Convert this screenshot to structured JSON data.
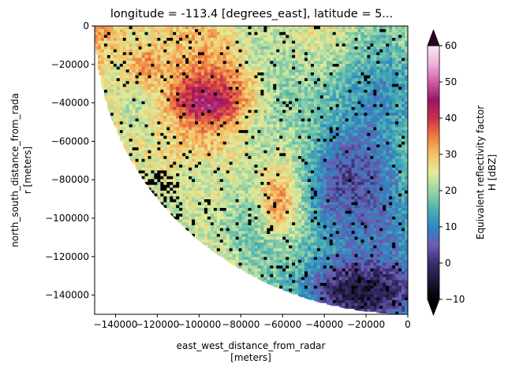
{
  "chart_data": {
    "type": "heatmap",
    "title": "longitude = -113.4 [degrees_east], latitude = 5...",
    "xlabel": "east_west_distance_from_radar",
    "xlabel_units": "[meters]",
    "ylabel": "north_south_distance_from_rada",
    "ylabel_units": "r [meters]",
    "xlim": [
      -150000,
      0
    ],
    "ylim": [
      -150000,
      0
    ],
    "x_ticks": [
      -140000,
      -120000,
      -100000,
      -80000,
      -60000,
      -40000,
      -20000,
      0
    ],
    "x_tick_labels": [
      "−140000",
      "−120000",
      "−100000",
      "−80000",
      "−60000",
      "−40000",
      "−20000",
      "0"
    ],
    "y_ticks": [
      0,
      -20000,
      -40000,
      -60000,
      -80000,
      -100000,
      -120000,
      -140000
    ],
    "y_tick_labels": [
      "0",
      "−20000",
      "−40000",
      "−60000",
      "−80000",
      "−100000",
      "−120000",
      "−140000"
    ],
    "grid": false,
    "data_extent_radius": 150000,
    "colorbar": {
      "label_line1": "Equivalent reflectivity factor",
      "label_line2": "H [dBZ]",
      "range": [
        -10,
        60
      ],
      "ticks": [
        -10,
        0,
        10,
        20,
        30,
        40,
        50,
        60
      ],
      "tick_labels": [
        "−10",
        "0",
        "10",
        "20",
        "30",
        "40",
        "50",
        "60"
      ],
      "extend": "both",
      "colormap": "spectral-like",
      "stops": [
        {
          "v": -10,
          "color": "#000000"
        },
        {
          "v": 0,
          "color": "#3b2d6e"
        },
        {
          "v": 5,
          "color": "#6a5db3"
        },
        {
          "v": 10,
          "color": "#2d87c2"
        },
        {
          "v": 15,
          "color": "#4eb3b0"
        },
        {
          "v": 20,
          "color": "#9bd4a4"
        },
        {
          "v": 25,
          "color": "#e2ec9b"
        },
        {
          "v": 30,
          "color": "#f5c266"
        },
        {
          "v": 35,
          "color": "#ee7c3f"
        },
        {
          "v": 40,
          "color": "#c9304a"
        },
        {
          "v": 45,
          "color": "#9a1566"
        },
        {
          "v": 50,
          "color": "#cf5ea8"
        },
        {
          "v": 55,
          "color": "#f0b3dc"
        },
        {
          "v": 60,
          "color": "#fbe7f5"
        }
      ]
    },
    "regions": [
      {
        "x": -95000,
        "y": -35000,
        "rx": 30000,
        "ry": 24000,
        "value": 40
      },
      {
        "x": -97000,
        "y": -40000,
        "rx": 13000,
        "ry": 9000,
        "value": 46
      },
      {
        "x": -60000,
        "y": -90000,
        "rx": 14000,
        "ry": 24000,
        "value": 37
      },
      {
        "x": -125000,
        "y": -20000,
        "rx": 12000,
        "ry": 14000,
        "value": 33
      },
      {
        "x": -100000,
        "y": -80000,
        "rx": 22000,
        "ry": 16000,
        "value": 23
      },
      {
        "x": -28000,
        "y": -80000,
        "rx": 28000,
        "ry": 40000,
        "value": 3
      },
      {
        "x": -22000,
        "y": -138000,
        "rx": 38000,
        "ry": 22000,
        "value": -5
      }
    ]
  }
}
